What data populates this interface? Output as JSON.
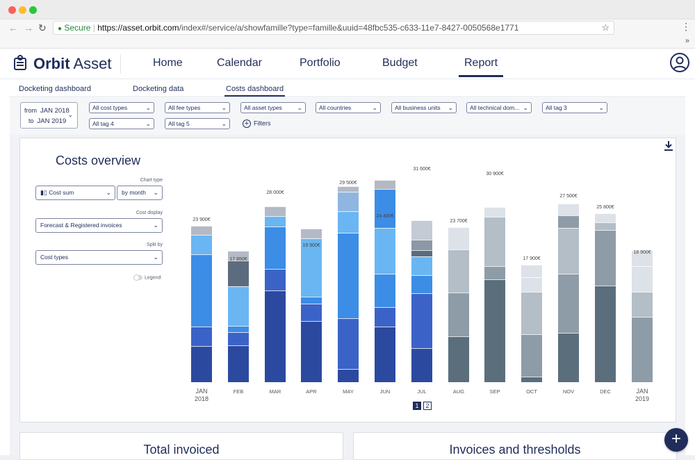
{
  "browser": {
    "secure_label": "Secure",
    "url_host": "https://asset.orbit.com",
    "url_path": "/index#/service/a/showfamille?type=famille&uuid=48fbc535-c633-11e7-8427-0050568e1771",
    "nav_icons": [
      "back-icon",
      "forward-icon",
      "reload-icon",
      "lock-icon",
      "star-icon",
      "kebab-menu-icon",
      "extensions-chevron-icon"
    ]
  },
  "header": {
    "logo_bold": "Orbit",
    "logo_light": "Asset",
    "nav": [
      "Home",
      "Calendar",
      "Portfolio",
      "Budget",
      "Report"
    ],
    "active_nav": "Report"
  },
  "subnav": {
    "items": [
      "Docketing dashboard",
      "Docketing data",
      "Costs dashboard"
    ],
    "active": "Costs dashboard"
  },
  "filters": {
    "date_from_prefix": "from",
    "date_from": "JAN 2018",
    "date_to_prefix": "to",
    "date_to": "JAN 2019",
    "selects": [
      "All cost types",
      "All fee types",
      "All asset types",
      "All countries",
      "All business units",
      "All technical dom...",
      "All tag 3",
      "All tag 4",
      "All tag 5"
    ],
    "filters_button": "Filters"
  },
  "chart_panel": {
    "title": "Costs overview",
    "chart_type_label": "Chart type",
    "chart_type_value": "Cost sum",
    "period_value": "by month",
    "cost_display_label": "Cost display",
    "cost_display_value": "Forecast & Registered invoices",
    "split_by_label": "Split by",
    "split_by_value": "Cost types",
    "legend_label": "Legend",
    "pages": [
      "1",
      "2"
    ],
    "active_page": "1"
  },
  "chart_data": {
    "type": "bar",
    "stacked": true,
    "categories": [
      "JAN 2018",
      "FEB",
      "MAR",
      "APR",
      "MAY",
      "JUN",
      "JUL",
      "AUG",
      "SEP",
      "OCT",
      "NOV",
      "DEC",
      "JAN 2019"
    ],
    "totals": [
      23900,
      17850,
      28000,
      19900,
      29500,
      24400,
      31600,
      23700,
      30900,
      17900,
      27500,
      25800,
      18900
    ],
    "total_labels": [
      "23 900€",
      "17 850€",
      "28 000€",
      "19 900€",
      "29 500€",
      "24 400€",
      "31 600€",
      "23 700€",
      "30 900€",
      "17 900€",
      "27 500€",
      "25 800€",
      "18 900€"
    ],
    "segment_values": [
      [
        5500,
        3000,
        11000,
        3000,
        1400
      ],
      [
        5600,
        2000,
        1000,
        6000,
        4000,
        1400
      ],
      [
        14000,
        3300,
        6500,
        1500,
        1500
      ],
      [
        9300,
        2700,
        1000,
        9000,
        1400
      ],
      [
        2000,
        7800,
        13000,
        3300,
        3000,
        800
      ],
      [
        8500,
        3000,
        5000,
        7000,
        6000,
        1400
      ],
      [
        5200,
        8400,
        2700,
        2900,
        1000,
        1500,
        3000
      ],
      [
        7000,
        6700,
        6600,
        3400
      ],
      [
        15700,
        2000,
        7500,
        1500
      ],
      [
        800,
        6500,
        6500,
        2200,
        1900
      ],
      [
        7500,
        9000,
        7000,
        2000,
        1800
      ],
      [
        14700,
        8500,
        1200,
        1400
      ],
      [
        10000,
        3800,
        3900,
        2400
      ]
    ],
    "segment_colors": [
      [
        "#2b4a9f",
        "#3b63c7",
        "#3c8de6",
        "#6ab6f2",
        "#b4bac5"
      ],
      [
        "#2b4a9f",
        "#3b63c7",
        "#3c8de6",
        "#6ab6f2",
        "#5c6c7e",
        "#b4bac5"
      ],
      [
        "#2b4a9f",
        "#3b63c7",
        "#3c8de6",
        "#6ab6f2",
        "#b4bac5"
      ],
      [
        "#2b4a9f",
        "#3b63c7",
        "#3c8de6",
        "#6ab6f2",
        "#b4bac5"
      ],
      [
        "#2b4a9f",
        "#3b63c7",
        "#3c8de6",
        "#6ab6f2",
        "#8fb6e0",
        "#b4bac5"
      ],
      [
        "#2b4a9f",
        "#3b63c7",
        "#3c8de6",
        "#6ab6f2",
        "#3c8de6",
        "#b4bac5"
      ],
      [
        "#2b4a9f",
        "#3b63c7",
        "#3c8de6",
        "#6ab6f2",
        "#5c6c7e",
        "#8c98a6",
        "#c5cbd4"
      ],
      [
        "#5b6e7c",
        "#8e9ca8",
        "#b3bec7",
        "#dde2e8"
      ],
      [
        "#5b6e7c",
        "#8e9ca8",
        "#b3bec7",
        "#dde2e8"
      ],
      [
        "#5b6e7c",
        "#8e9ca8",
        "#b3bec7",
        "#dde2e8",
        "#dde2e8"
      ],
      [
        "#5b6e7c",
        "#8e9ca8",
        "#b3bec7",
        "#8e9ca8",
        "#dde2e8"
      ],
      [
        "#5b6e7c",
        "#8e9ca8",
        "#b3bec7",
        "#dde2e8"
      ],
      [
        "#8e9ca8",
        "#b3bec7",
        "#dde2e8",
        "#dde2e8"
      ]
    ],
    "xlabel": "",
    "ylabel": ""
  },
  "bottom_cards": [
    "Total invoiced",
    "Invoices and thresholds"
  ],
  "fab_label": "+"
}
